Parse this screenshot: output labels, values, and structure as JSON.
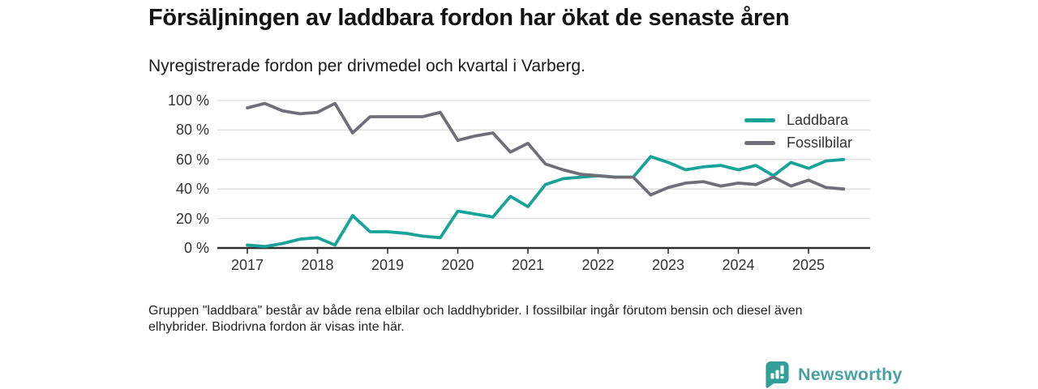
{
  "header": {
    "title": "Försäljningen av laddbara fordon har ökat de senaste åren",
    "subtitle": "Nyregistrerade fordon per drivmedel och kvartal i Varberg."
  },
  "chart_data": {
    "type": "line",
    "unit": "%",
    "x_start": "2017 Q1",
    "x_end": "2025 Q3",
    "frequency": "quarterly",
    "x_tick_labels": [
      "2017",
      "2018",
      "2019",
      "2020",
      "2021",
      "2022",
      "2023",
      "2024",
      "2025"
    ],
    "y_tick_values": [
      0,
      20,
      40,
      60,
      80,
      100
    ],
    "y_tick_labels": [
      "0 %",
      "20 %",
      "40 %",
      "60 %",
      "80 %",
      "100 %"
    ],
    "ylim": [
      0,
      100
    ],
    "grid": true,
    "legend_position": "top-right",
    "series": [
      {
        "name": "Laddbara",
        "color": "#17a398",
        "values": [
          2,
          1,
          3,
          6,
          7,
          2,
          22,
          11,
          11,
          10,
          8,
          7,
          25,
          23,
          21,
          35,
          28,
          43,
          47,
          48,
          49,
          48,
          48,
          62,
          58,
          53,
          55,
          56,
          53,
          56,
          49,
          58,
          54,
          59,
          60
        ]
      },
      {
        "name": "Fossilbilar",
        "color": "#6f6f78",
        "values": [
          95,
          98,
          93,
          91,
          92,
          98,
          78,
          89,
          89,
          89,
          89,
          92,
          73,
          76,
          78,
          65,
          71,
          57,
          53,
          50,
          49,
          48,
          48,
          36,
          41,
          44,
          45,
          42,
          44,
          43,
          48,
          42,
          46,
          41,
          40
        ]
      }
    ],
    "colors": {
      "gridline": "#dcdcdc",
      "axis": "#2f2f2f",
      "tick_label": "#333333"
    }
  },
  "footnote": {
    "lines": [
      "Gruppen \"laddbara\" består av både rena elbilar och laddhybrider. I fossilbilar ingår förutom bensin och diesel även",
      "elhybrider. Biodrivna fordon är visas inte här."
    ]
  },
  "logo": {
    "text": "Newsworthy",
    "badge_color": "#31a099",
    "text_color": "#48a2a3",
    "icon": "bar-chart-speech-bubble"
  }
}
